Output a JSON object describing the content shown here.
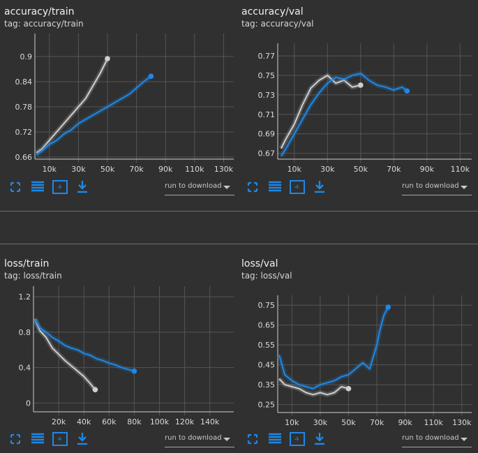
{
  "colors": {
    "background": "#303030",
    "accent": "#1e88e5",
    "series_blue": "#1e88e5",
    "series_grey": "#cfcfcf",
    "grid": "#555555"
  },
  "toolbar": {
    "icons": [
      "fullscreen-icon",
      "data-table-icon",
      "fit-domain-icon",
      "download-icon"
    ],
    "download_select_label": "run to download"
  },
  "cards": [
    {
      "title": "accuracy/train",
      "tag": "tag: accuracy/train"
    },
    {
      "title": "accuracy/val",
      "tag": "tag: accuracy/val"
    },
    {
      "title": "loss/train",
      "tag": "tag: loss/train"
    },
    {
      "title": "loss/val",
      "tag": "tag: loss/val"
    }
  ],
  "chart_data": [
    {
      "type": "line",
      "title": "accuracy/train",
      "x_ticks": [
        "10k",
        "30k",
        "50k",
        "70k",
        "90k",
        "110k",
        "130k"
      ],
      "y_ticks": [
        "0.66",
        "0.72",
        "0.78",
        "0.84",
        "0.9"
      ],
      "xlim": [
        0,
        137000
      ],
      "ylim": [
        0.655,
        0.955
      ],
      "grid": true,
      "series": [
        {
          "color": "#cfcfcf",
          "x": [
            1000,
            5000,
            10000,
            15000,
            20000,
            25000,
            30000,
            35000,
            40000,
            45000,
            50000
          ],
          "y": [
            0.67,
            0.68,
            0.7,
            0.72,
            0.74,
            0.76,
            0.78,
            0.8,
            0.83,
            0.86,
            0.895
          ]
        },
        {
          "color": "#1e88e5",
          "x": [
            1000,
            5000,
            10000,
            15000,
            20000,
            25000,
            30000,
            35000,
            40000,
            45000,
            50000,
            55000,
            60000,
            65000,
            70000,
            75000,
            80000
          ],
          "y": [
            0.665,
            0.675,
            0.69,
            0.7,
            0.715,
            0.725,
            0.74,
            0.75,
            0.76,
            0.77,
            0.78,
            0.79,
            0.8,
            0.81,
            0.825,
            0.84,
            0.853
          ]
        }
      ]
    },
    {
      "type": "line",
      "title": "accuracy/val",
      "x_ticks": [
        "10k",
        "30k",
        "50k",
        "70k",
        "90k",
        "110k"
      ],
      "y_ticks": [
        "0.67",
        "0.69",
        "0.71",
        "0.73",
        "0.75",
        "0.77"
      ],
      "xlim": [
        0,
        117000
      ],
      "ylim": [
        0.664,
        0.783
      ],
      "grid": true,
      "series": [
        {
          "color": "#cfcfcf",
          "x": [
            2000,
            5000,
            10000,
            15000,
            20000,
            25000,
            30000,
            35000,
            40000,
            45000,
            50000
          ],
          "y": [
            0.675,
            0.685,
            0.7,
            0.72,
            0.737,
            0.745,
            0.75,
            0.742,
            0.745,
            0.738,
            0.74
          ]
        },
        {
          "color": "#1e88e5",
          "x": [
            2000,
            5000,
            10000,
            15000,
            20000,
            25000,
            30000,
            35000,
            40000,
            45000,
            50000,
            55000,
            60000,
            65000,
            70000,
            75000,
            78000
          ],
          "y": [
            0.667,
            0.675,
            0.69,
            0.705,
            0.72,
            0.732,
            0.742,
            0.748,
            0.746,
            0.75,
            0.752,
            0.745,
            0.74,
            0.738,
            0.735,
            0.738,
            0.734
          ]
        }
      ]
    },
    {
      "type": "line",
      "title": "loss/train",
      "x_ticks": [
        "20k",
        "40k",
        "60k",
        "80k",
        "100k",
        "120k",
        "140k"
      ],
      "y_ticks": [
        "0",
        "0.4",
        "0.8",
        "1.2"
      ],
      "xlim": [
        0,
        159000
      ],
      "ylim": [
        -0.1,
        1.32
      ],
      "grid": true,
      "series": [
        {
          "color": "#cfcfcf",
          "x": [
            1000,
            5000,
            10000,
            15000,
            20000,
            25000,
            30000,
            35000,
            40000,
            45000,
            49000
          ],
          "y": [
            0.95,
            0.82,
            0.74,
            0.62,
            0.55,
            0.48,
            0.42,
            0.36,
            0.3,
            0.22,
            0.15
          ]
        },
        {
          "color": "#1e88e5",
          "x": [
            1000,
            5000,
            10000,
            15000,
            20000,
            25000,
            30000,
            35000,
            40000,
            45000,
            50000,
            55000,
            60000,
            65000,
            70000,
            75000,
            80000
          ],
          "y": [
            0.95,
            0.85,
            0.8,
            0.74,
            0.7,
            0.65,
            0.62,
            0.6,
            0.56,
            0.54,
            0.5,
            0.48,
            0.45,
            0.43,
            0.4,
            0.38,
            0.36
          ]
        }
      ]
    },
    {
      "type": "line",
      "title": "loss/val",
      "x_ticks": [
        "10k",
        "30k",
        "50k",
        "70k",
        "90k",
        "110k",
        "130k"
      ],
      "y_ticks": [
        "0.25",
        "0.35",
        "0.45",
        "0.55",
        "0.65",
        "0.75"
      ],
      "xlim": [
        0,
        137000
      ],
      "ylim": [
        0.21,
        0.8
      ],
      "grid": true,
      "series": [
        {
          "color": "#cfcfcf",
          "x": [
            1000,
            5000,
            10000,
            15000,
            20000,
            25000,
            30000,
            35000,
            40000,
            45000,
            50000
          ],
          "y": [
            0.38,
            0.35,
            0.34,
            0.33,
            0.31,
            0.3,
            0.31,
            0.3,
            0.31,
            0.34,
            0.33
          ]
        },
        {
          "color": "#1e88e5",
          "x": [
            1000,
            5000,
            10000,
            15000,
            20000,
            25000,
            30000,
            35000,
            40000,
            45000,
            50000,
            55000,
            60000,
            65000,
            70000,
            72000,
            75000,
            78000
          ],
          "y": [
            0.5,
            0.4,
            0.37,
            0.35,
            0.34,
            0.33,
            0.35,
            0.36,
            0.37,
            0.39,
            0.4,
            0.43,
            0.46,
            0.43,
            0.55,
            0.62,
            0.7,
            0.74
          ]
        }
      ]
    }
  ]
}
